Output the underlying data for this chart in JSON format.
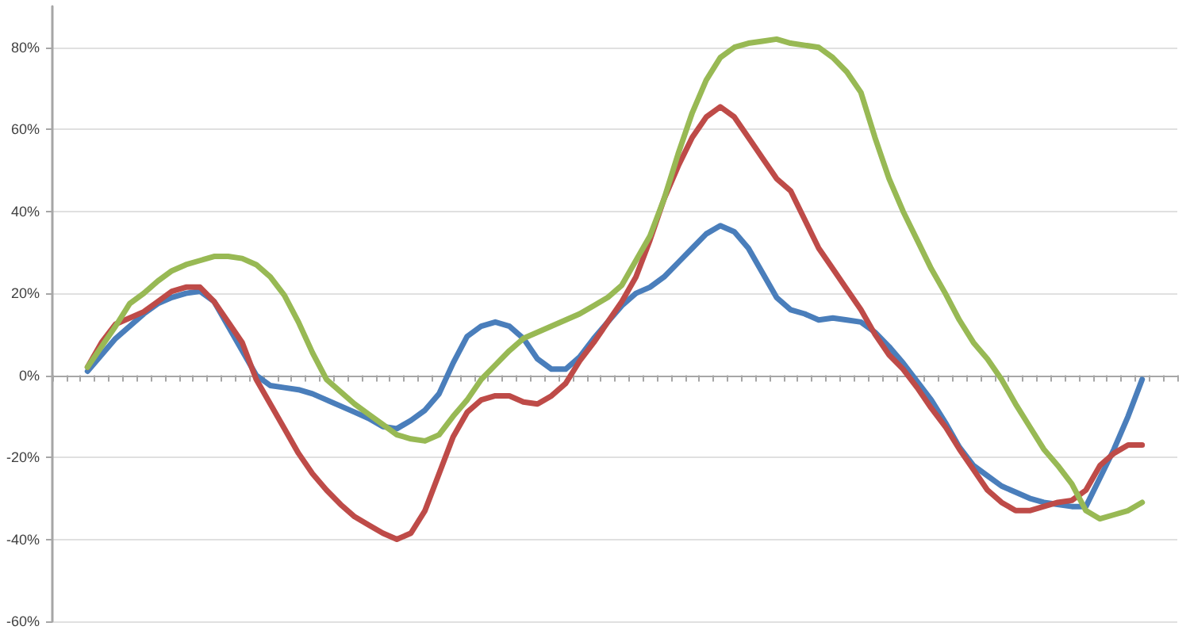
{
  "chart_data": {
    "type": "line",
    "categories": [
      null,
      null,
      null,
      null,
      null,
      null,
      null,
      null,
      null,
      null,
      null,
      null,
      null,
      null,
      null,
      null,
      null,
      null,
      null,
      null,
      null,
      null,
      null,
      null,
      null,
      null,
      null,
      null,
      null,
      null,
      null,
      null,
      null,
      null,
      null,
      null,
      null,
      null,
      null,
      null,
      null,
      null,
      null,
      null,
      null,
      null,
      null,
      null,
      null,
      null,
      null,
      null,
      null,
      null,
      null,
      null,
      null,
      null,
      null,
      null,
      null,
      null,
      null,
      null,
      null,
      null,
      null,
      null,
      null,
      null,
      null,
      null,
      null,
      null,
      null,
      null,
      null,
      null,
      null,
      null
    ],
    "series": [
      {
        "color": "#4a7ebb",
        "values": [
          null,
          null,
          1,
          5,
          9,
          12,
          15,
          17.5,
          19,
          20,
          20.5,
          18,
          12,
          6,
          0,
          -2.5,
          -3,
          -3.5,
          -4.5,
          -6,
          -7.5,
          -9,
          -10.5,
          -12.5,
          -13,
          -11,
          -8.5,
          -4.5,
          3,
          9.5,
          12,
          13,
          12,
          9,
          4,
          1.5,
          1.5,
          4.5,
          9,
          13,
          17,
          20,
          21.5,
          24,
          27.5,
          31,
          34.5,
          36.5,
          35,
          31,
          25,
          19,
          16,
          15,
          13.5,
          14,
          13.5,
          13,
          10.5,
          7,
          3,
          -1.5,
          -6,
          -11.5,
          -17.5,
          -22,
          -24.5,
          -27,
          -28.5,
          -30,
          -31,
          -31.5,
          -32,
          -32,
          -25,
          -18,
          -10,
          -1,
          null,
          null
        ]
      },
      {
        "color": "#be4b48",
        "values": [
          null,
          null,
          2,
          8,
          12.5,
          14,
          15.5,
          18,
          20.5,
          21.5,
          21.5,
          18,
          13,
          8,
          -1,
          -7,
          -13,
          -19,
          -24,
          -28,
          -31.5,
          -34.5,
          -36.5,
          -38.5,
          -40,
          -38.5,
          -33,
          -24,
          -15,
          -9,
          -6,
          -5,
          -5,
          -6.5,
          -7,
          -5,
          -2,
          3.5,
          8,
          13,
          18,
          24,
          33,
          43,
          51,
          58,
          63,
          65.5,
          63,
          58,
          53,
          48,
          45,
          38,
          31,
          26,
          21,
          16,
          10,
          5,
          1.5,
          -3,
          -8,
          -12.5,
          -18,
          -23,
          -28,
          -31,
          -33,
          -33,
          -32,
          -31,
          -30.5,
          -28,
          -22,
          -19,
          -17,
          -17,
          null,
          null
        ]
      },
      {
        "color": "#98b954",
        "values": [
          null,
          null,
          2,
          7,
          12,
          17.5,
          20,
          23,
          25.5,
          27,
          28,
          29,
          29,
          28.5,
          27,
          24,
          19.5,
          13,
          5.5,
          -1,
          -4,
          -7,
          -9.5,
          -12,
          -14.5,
          -15.5,
          -16,
          -14.5,
          -10,
          -6,
          -1,
          2.5,
          6,
          9,
          10.5,
          12,
          13.5,
          15,
          17,
          19,
          22,
          28,
          34,
          43,
          54,
          64,
          72,
          77.5,
          80,
          81,
          81.5,
          82,
          81,
          80.5,
          80,
          77.5,
          74,
          69,
          58,
          48,
          40,
          33,
          26,
          20,
          13.5,
          8,
          4,
          -1,
          -7,
          -12.5,
          -18,
          -22,
          -26.5,
          -33,
          -35,
          -34,
          -33,
          -31,
          null,
          null
        ]
      }
    ],
    "ylim": [
      -60,
      90
    ],
    "yticks": [
      {
        "value": -60,
        "label": "-60%"
      },
      {
        "value": -40,
        "label": "-40%"
      },
      {
        "value": -20,
        "label": "-20%"
      },
      {
        "value": 0,
        "label": "0%"
      },
      {
        "value": 20,
        "label": "20%"
      },
      {
        "value": 40,
        "label": "40%"
      },
      {
        "value": 60,
        "label": "60%"
      },
      {
        "value": 80,
        "label": "80%"
      }
    ],
    "grid": "y",
    "tick_labels": "y",
    "line_style": "solid"
  }
}
